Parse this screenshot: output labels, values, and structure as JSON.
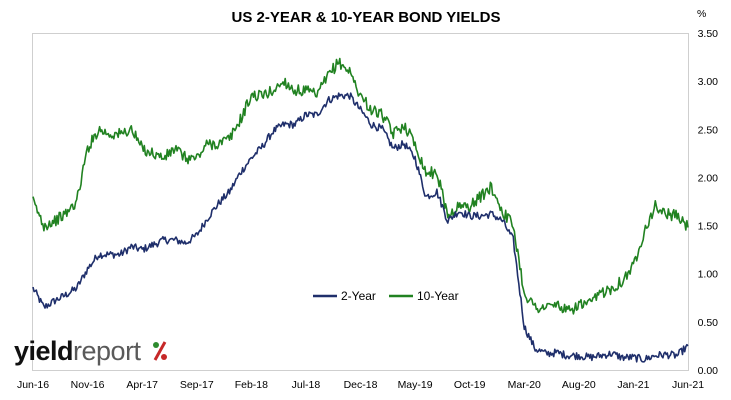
{
  "chart_data": {
    "type": "line",
    "title": "US 2-YEAR & 10-YEAR BOND YIELDS",
    "y_unit": "%",
    "ylim": [
      0,
      3.5
    ],
    "y_ticks": [
      "0.00",
      "0.50",
      "1.00",
      "1.50",
      "2.00",
      "2.50",
      "3.00",
      "3.50"
    ],
    "x_ticks": [
      "Jun-16",
      "Nov-16",
      "Apr-17",
      "Sep-17",
      "Feb-18",
      "Jul-18",
      "Dec-18",
      "May-19",
      "Oct-19",
      "Mar-20",
      "Aug-20",
      "Jan-21",
      "Jun-21"
    ],
    "x": [
      "Jun-16",
      "Jul-16",
      "Aug-16",
      "Sep-16",
      "Oct-16",
      "Nov-16",
      "Dec-16",
      "Jan-17",
      "Feb-17",
      "Mar-17",
      "Apr-17",
      "May-17",
      "Jun-17",
      "Jul-17",
      "Aug-17",
      "Sep-17",
      "Oct-17",
      "Nov-17",
      "Dec-17",
      "Jan-18",
      "Feb-18",
      "Mar-18",
      "Apr-18",
      "May-18",
      "Jun-18",
      "Jul-18",
      "Aug-18",
      "Sep-18",
      "Oct-18",
      "Nov-18",
      "Dec-18",
      "Jan-19",
      "Feb-19",
      "Mar-19",
      "Apr-19",
      "May-19",
      "Jun-19",
      "Jul-19",
      "Aug-19",
      "Sep-19",
      "Oct-19",
      "Nov-19",
      "Dec-19",
      "Jan-20",
      "Feb-20",
      "Mar-20",
      "Apr-20",
      "May-20",
      "Jun-20",
      "Jul-20",
      "Aug-20",
      "Sep-20",
      "Oct-20",
      "Nov-20",
      "Dec-20",
      "Jan-21",
      "Feb-21",
      "Mar-21",
      "Apr-21",
      "May-21",
      "Jun-21"
    ],
    "grid": false,
    "legend_position": "center",
    "series": [
      {
        "name": "2-Year",
        "color": "#1f2f6b",
        "values": [
          0.85,
          0.65,
          0.72,
          0.78,
          0.85,
          1.05,
          1.2,
          1.2,
          1.2,
          1.28,
          1.25,
          1.3,
          1.35,
          1.35,
          1.32,
          1.4,
          1.58,
          1.73,
          1.85,
          2.05,
          2.2,
          2.32,
          2.48,
          2.55,
          2.55,
          2.65,
          2.65,
          2.8,
          2.85,
          2.85,
          2.7,
          2.55,
          2.5,
          2.3,
          2.35,
          2.2,
          1.8,
          1.85,
          1.55,
          1.65,
          1.6,
          1.6,
          1.62,
          1.55,
          1.35,
          0.45,
          0.22,
          0.17,
          0.18,
          0.15,
          0.15,
          0.13,
          0.15,
          0.17,
          0.13,
          0.13,
          0.11,
          0.15,
          0.16,
          0.15,
          0.25
        ]
      },
      {
        "name": "10-Year",
        "color": "#218221",
        "values": [
          1.75,
          1.5,
          1.55,
          1.62,
          1.75,
          2.3,
          2.5,
          2.45,
          2.45,
          2.5,
          2.3,
          2.25,
          2.2,
          2.3,
          2.2,
          2.2,
          2.35,
          2.35,
          2.4,
          2.6,
          2.85,
          2.85,
          2.9,
          3.0,
          2.9,
          2.9,
          2.85,
          3.05,
          3.2,
          3.1,
          2.85,
          2.7,
          2.65,
          2.45,
          2.55,
          2.35,
          2.05,
          2.05,
          1.6,
          1.7,
          1.7,
          1.8,
          1.9,
          1.65,
          1.5,
          0.8,
          0.65,
          0.65,
          0.68,
          0.6,
          0.68,
          0.68,
          0.8,
          0.85,
          0.93,
          1.08,
          1.45,
          1.7,
          1.62,
          1.6,
          1.48
        ]
      }
    ]
  },
  "logo": {
    "word1": "yield",
    "word2": "report",
    "symbol": "%"
  }
}
